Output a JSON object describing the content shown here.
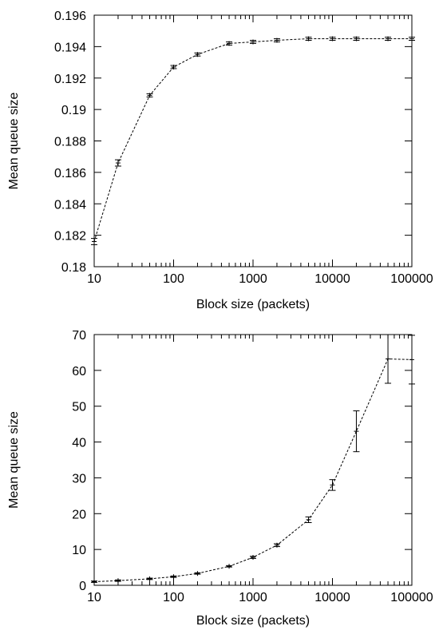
{
  "chart_data": [
    {
      "type": "line",
      "title": "",
      "xlabel": "Block size (packets)",
      "ylabel": "Mean queue size",
      "xscale": "log",
      "xlim": [
        10,
        100000
      ],
      "ylim": [
        0.18,
        0.196
      ],
      "grid": false,
      "legend": "none",
      "color": "#000000",
      "xticks": [
        "10",
        "100",
        "1000",
        "10000",
        "100000"
      ],
      "yticks": [
        "0.18",
        "0.182",
        "0.184",
        "0.186",
        "0.188",
        "0.19",
        "0.192",
        "0.194",
        "0.196"
      ],
      "series": [
        {
          "x": [
            10,
            20,
            50,
            100,
            200,
            500,
            1000,
            2000,
            5000,
            10000,
            20000,
            50000,
            100000
          ],
          "y": [
            0.1816,
            0.1866,
            0.1909,
            0.1927,
            0.1935,
            0.1942,
            0.1943,
            0.1944,
            0.1945,
            0.1945,
            0.1945,
            0.1945,
            0.1945
          ],
          "err": [
            0.0002,
            0.0002,
            0.0001,
            0.0001,
            0.0001,
            0.0001,
            0.0001,
            0.0001,
            0.0001,
            0.0001,
            0.0001,
            0.0001,
            0.0001
          ]
        }
      ]
    },
    {
      "type": "line",
      "title": "",
      "xlabel": "Block size (packets)",
      "ylabel": "Mean queue size",
      "xscale": "log",
      "xlim": [
        10,
        100000
      ],
      "ylim": [
        0,
        70
      ],
      "grid": false,
      "legend": "none",
      "color": "#000000",
      "xticks": [
        "10",
        "100",
        "1000",
        "10000",
        "100000"
      ],
      "yticks": [
        "0",
        "10",
        "20",
        "30",
        "40",
        "50",
        "60",
        "70"
      ],
      "series": [
        {
          "x": [
            10,
            20,
            50,
            100,
            200,
            500,
            1000,
            2000,
            5000,
            10000,
            20000,
            50000,
            100000
          ],
          "y": [
            1.0,
            1.3,
            1.8,
            2.4,
            3.3,
            5.3,
            7.8,
            11.2,
            18.3,
            28.0,
            43.0,
            63.2,
            63.0
          ],
          "err": [
            0.2,
            0.2,
            0.2,
            0.2,
            0.2,
            0.2,
            0.3,
            0.4,
            0.8,
            1.5,
            5.7,
            6.8,
            6.8
          ]
        }
      ]
    }
  ]
}
